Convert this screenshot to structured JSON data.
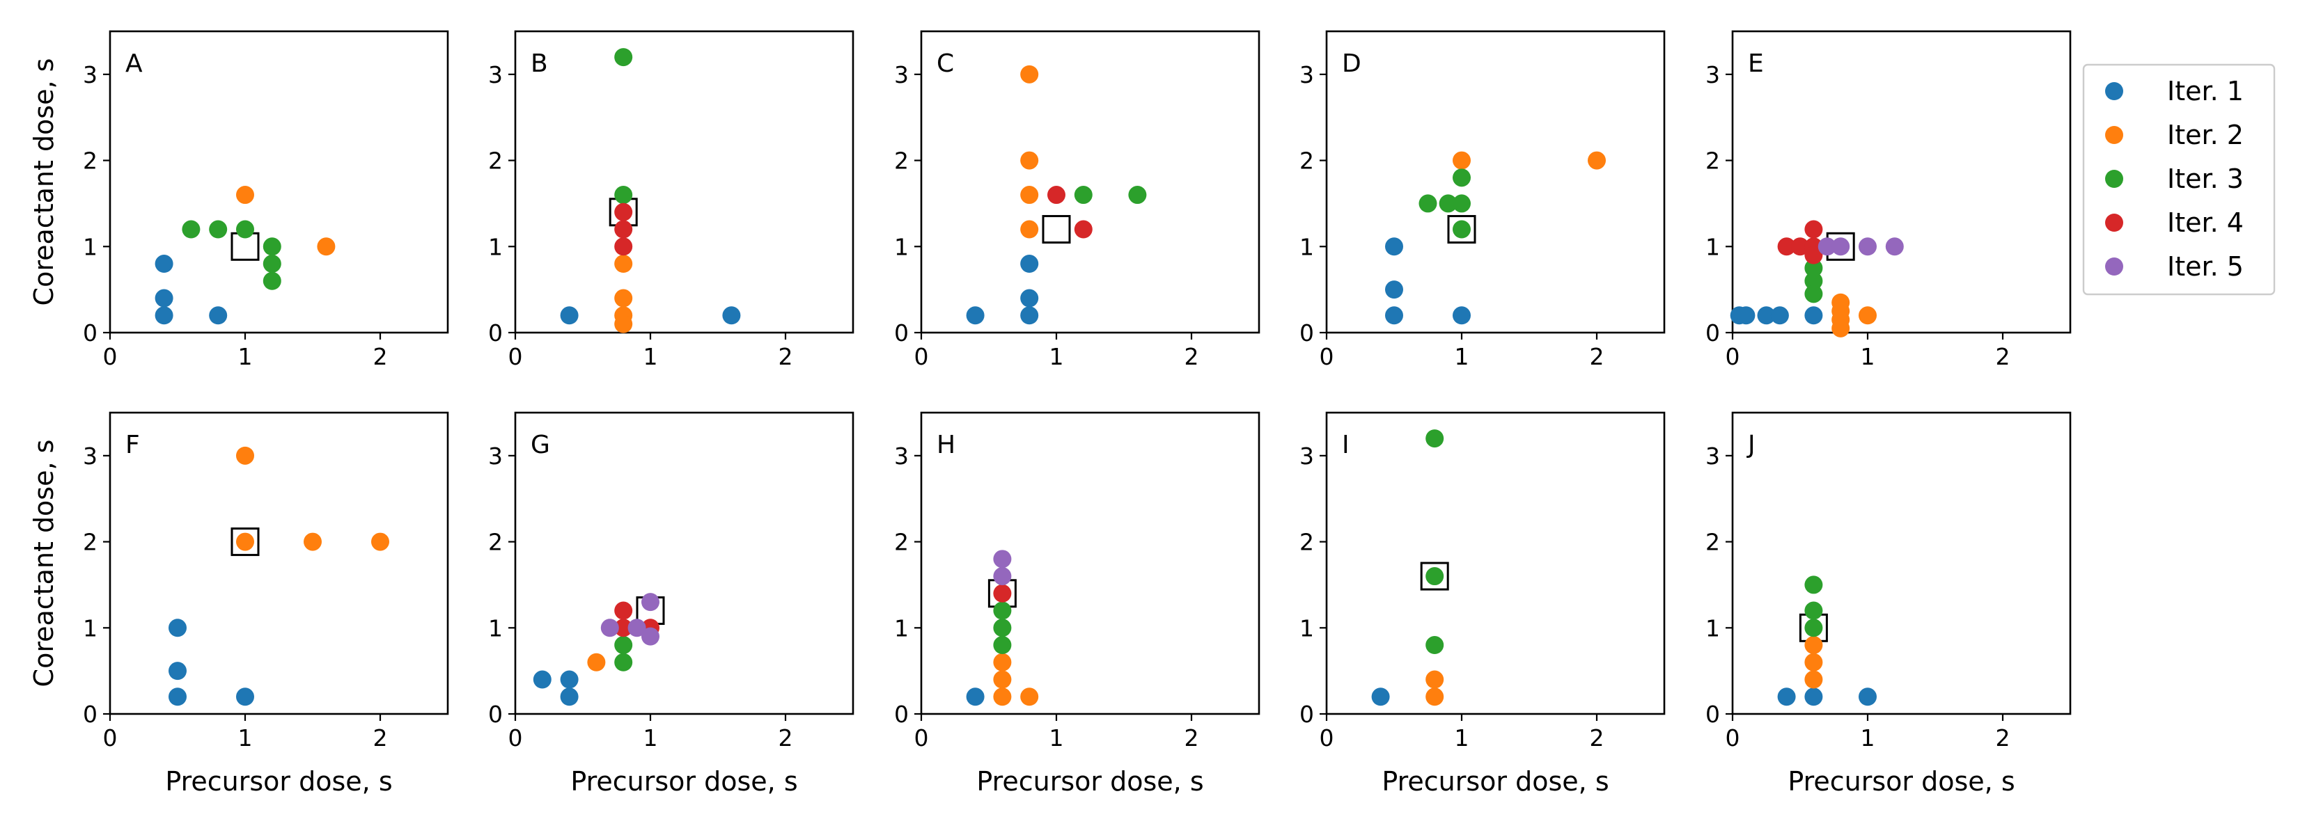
{
  "chart_data": {
    "type": "scatter",
    "xlabel": "Precursor dose, s",
    "ylabel": "Coreactant dose, s",
    "xlim": [
      0,
      2.5
    ],
    "ylim": [
      0,
      3.5
    ],
    "xticks": [
      0,
      1,
      2
    ],
    "yticks": [
      0,
      1,
      2,
      3
    ],
    "legend": {
      "placement": "right of top row",
      "entries": [
        {
          "label": "Iter. 1",
          "color": "#1f77b4"
        },
        {
          "label": "Iter. 2",
          "color": "#ff7f0e"
        },
        {
          "label": "Iter. 3",
          "color": "#2ca02c"
        },
        {
          "label": "Iter. 4",
          "color": "#d62728"
        },
        {
          "label": "Iter. 5",
          "color": "#9467bd"
        }
      ]
    },
    "panels": [
      {
        "label": "A",
        "best": [
          1.0,
          1.0
        ],
        "iterations": [
          [
            [
              0.4,
              0.8
            ],
            [
              0.4,
              0.4
            ],
            [
              0.4,
              0.2
            ],
            [
              0.8,
              0.2
            ]
          ],
          [
            [
              1.0,
              1.6
            ],
            [
              1.6,
              1.0
            ]
          ],
          [
            [
              0.6,
              1.2
            ],
            [
              0.8,
              1.2
            ],
            [
              1.0,
              1.2
            ],
            [
              1.2,
              1.0
            ],
            [
              1.2,
              0.8
            ],
            [
              1.2,
              0.6
            ]
          ],
          [],
          []
        ]
      },
      {
        "label": "B",
        "best": [
          0.8,
          1.4
        ],
        "iterations": [
          [
            [
              0.4,
              0.2
            ],
            [
              1.6,
              0.2
            ]
          ],
          [
            [
              0.8,
              0.8
            ],
            [
              0.8,
              0.4
            ],
            [
              0.8,
              0.2
            ],
            [
              0.8,
              0.1
            ]
          ],
          [
            [
              0.8,
              3.2
            ],
            [
              0.8,
              1.6
            ]
          ],
          [
            [
              0.8,
              1.4
            ],
            [
              0.8,
              1.2
            ],
            [
              0.8,
              1.0
            ]
          ],
          []
        ]
      },
      {
        "label": "C",
        "best": [
          1.0,
          1.2
        ],
        "iterations": [
          [
            [
              0.4,
              0.2
            ],
            [
              0.8,
              0.8
            ],
            [
              0.8,
              0.4
            ],
            [
              0.8,
              0.2
            ]
          ],
          [
            [
              0.8,
              3.0
            ],
            [
              0.8,
              2.0
            ],
            [
              0.8,
              1.6
            ],
            [
              0.8,
              1.2
            ]
          ],
          [
            [
              1.2,
              1.6
            ],
            [
              1.6,
              1.6
            ]
          ],
          [
            [
              1.0,
              1.6
            ],
            [
              1.2,
              1.2
            ]
          ],
          []
        ]
      },
      {
        "label": "D",
        "best": [
          1.0,
          1.2
        ],
        "iterations": [
          [
            [
              0.5,
              1.0
            ],
            [
              0.5,
              0.5
            ],
            [
              0.5,
              0.2
            ],
            [
              1.0,
              0.2
            ]
          ],
          [
            [
              1.0,
              2.0
            ],
            [
              2.0,
              2.0
            ]
          ],
          [
            [
              1.0,
              1.8
            ],
            [
              0.75,
              1.5
            ],
            [
              0.9,
              1.5
            ],
            [
              1.0,
              1.5
            ],
            [
              1.0,
              1.2
            ]
          ],
          [],
          []
        ]
      },
      {
        "label": "E",
        "best": [
          0.8,
          1.0
        ],
        "iterations": [
          [
            [
              0.05,
              0.2
            ],
            [
              0.1,
              0.2
            ],
            [
              0.25,
              0.2
            ],
            [
              0.35,
              0.2
            ],
            [
              0.6,
              0.2
            ]
          ],
          [
            [
              0.8,
              0.35
            ],
            [
              0.8,
              0.25
            ],
            [
              0.8,
              0.15
            ],
            [
              0.8,
              0.05
            ],
            [
              1.0,
              0.2
            ]
          ],
          [
            [
              0.6,
              0.75
            ],
            [
              0.6,
              0.6
            ],
            [
              0.6,
              0.45
            ]
          ],
          [
            [
              0.4,
              1.0
            ],
            [
              0.5,
              1.0
            ],
            [
              0.6,
              1.0
            ],
            [
              0.6,
              1.2
            ],
            [
              0.6,
              0.9
            ]
          ],
          [
            [
              0.7,
              1.0
            ],
            [
              0.8,
              1.0
            ],
            [
              1.0,
              1.0
            ],
            [
              1.2,
              1.0
            ]
          ]
        ]
      },
      {
        "label": "F",
        "best": [
          1.0,
          2.0
        ],
        "iterations": [
          [
            [
              0.5,
              1.0
            ],
            [
              0.5,
              0.5
            ],
            [
              0.5,
              0.2
            ],
            [
              1.0,
              0.2
            ]
          ],
          [
            [
              1.0,
              3.0
            ],
            [
              1.0,
              2.0
            ],
            [
              1.5,
              2.0
            ],
            [
              2.0,
              2.0
            ]
          ],
          [],
          [],
          []
        ]
      },
      {
        "label": "G",
        "best": [
          1.0,
          1.2
        ],
        "iterations": [
          [
            [
              0.2,
              0.4
            ],
            [
              0.4,
              0.4
            ],
            [
              0.4,
              0.2
            ]
          ],
          [
            [
              0.6,
              0.6
            ]
          ],
          [
            [
              0.8,
              0.8
            ],
            [
              0.8,
              0.6
            ]
          ],
          [
            [
              0.8,
              1.2
            ],
            [
              0.8,
              1.0
            ],
            [
              1.0,
              1.0
            ]
          ],
          [
            [
              0.7,
              1.0
            ],
            [
              0.9,
              1.0
            ],
            [
              1.0,
              1.3
            ],
            [
              1.0,
              0.9
            ]
          ]
        ]
      },
      {
        "label": "H",
        "best": [
          0.6,
          1.4
        ],
        "iterations": [
          [
            [
              0.4,
              0.2
            ]
          ],
          [
            [
              0.6,
              0.6
            ],
            [
              0.6,
              0.4
            ],
            [
              0.6,
              0.2
            ],
            [
              0.8,
              0.2
            ]
          ],
          [
            [
              0.6,
              1.2
            ],
            [
              0.6,
              1.0
            ],
            [
              0.6,
              0.8
            ]
          ],
          [
            [
              0.6,
              1.4
            ]
          ],
          [
            [
              0.6,
              1.8
            ],
            [
              0.6,
              1.6
            ]
          ]
        ]
      },
      {
        "label": "I",
        "best": [
          0.8,
          1.6
        ],
        "iterations": [
          [
            [
              0.4,
              0.2
            ]
          ],
          [
            [
              0.8,
              0.4
            ],
            [
              0.8,
              0.2
            ]
          ],
          [
            [
              0.8,
              3.2
            ],
            [
              0.8,
              1.6
            ],
            [
              0.8,
              0.8
            ]
          ],
          [],
          []
        ]
      },
      {
        "label": "J",
        "best": [
          0.6,
          1.0
        ],
        "iterations": [
          [
            [
              0.4,
              0.2
            ],
            [
              0.6,
              0.2
            ],
            [
              1.0,
              0.2
            ]
          ],
          [
            [
              0.6,
              0.8
            ],
            [
              0.6,
              0.6
            ],
            [
              0.6,
              0.4
            ]
          ],
          [
            [
              0.6,
              1.5
            ],
            [
              0.6,
              1.2
            ],
            [
              0.6,
              1.0
            ]
          ],
          [],
          []
        ]
      }
    ]
  }
}
